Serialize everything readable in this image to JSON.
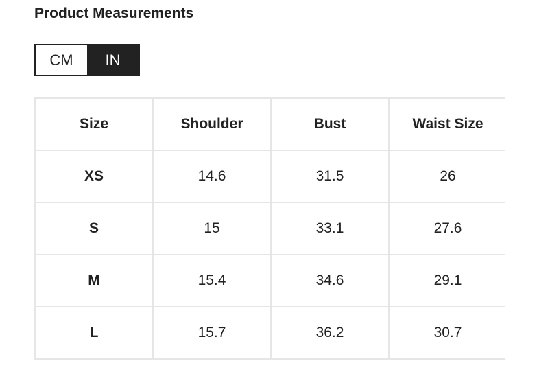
{
  "title": "Product Measurements",
  "unit_toggle": {
    "options": [
      "CM",
      "IN"
    ],
    "selected": "IN"
  },
  "table": {
    "headers": [
      "Size",
      "Shoulder",
      "Bust",
      "Waist Size"
    ],
    "rows": [
      [
        "XS",
        "14.6",
        "31.5",
        "26"
      ],
      [
        "S",
        "15",
        "33.1",
        "27.6"
      ],
      [
        "M",
        "15.4",
        "34.6",
        "29.1"
      ],
      [
        "L",
        "15.7",
        "36.2",
        "30.7"
      ]
    ]
  }
}
